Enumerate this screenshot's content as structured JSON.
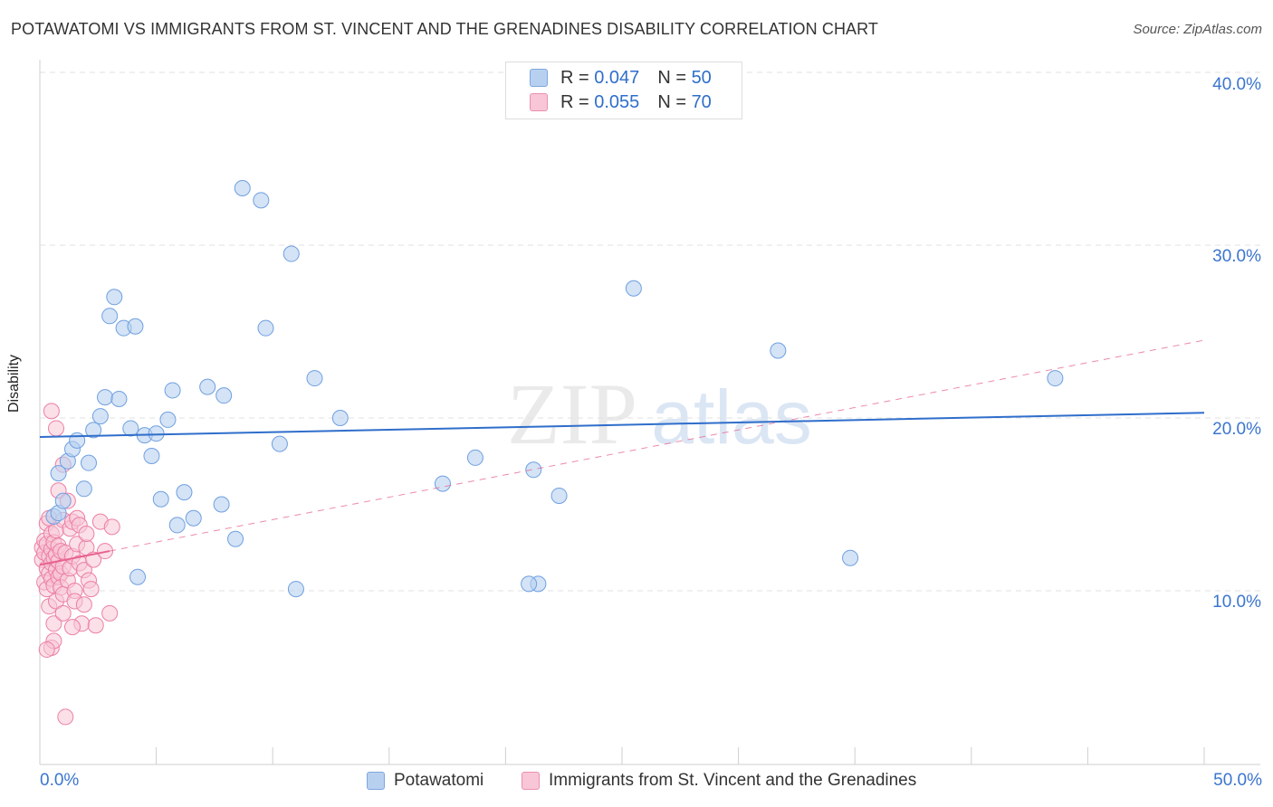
{
  "title": "POTAWATOMI VS IMMIGRANTS FROM ST. VINCENT AND THE GRENADINES DISABILITY CORRELATION CHART",
  "source": "Source: ZipAtlas.com",
  "watermark": {
    "zip": "ZIP",
    "atlas": "atlas"
  },
  "legend_box": {
    "series1": {
      "r_label": "R = ",
      "r_value": "0.047",
      "n_label": "N = ",
      "n_value": "50"
    },
    "series2": {
      "r_label": "R = ",
      "r_value": "0.055",
      "n_label": "N = ",
      "n_value": "70"
    }
  },
  "colors": {
    "blue": "#6fa0e0",
    "blue_fill": "#b8d0f0",
    "pink": "#ec7fa4",
    "pink_fill": "#f8c6d6",
    "blue_line": "#2f6ecb",
    "pink_line": "#e8628f",
    "tick_text": "#3a75cf"
  },
  "chart_data": {
    "type": "scatter",
    "title": "POTAWATOMI VS IMMIGRANTS FROM ST. VINCENT AND THE GRENADINES DISABILITY CORRELATION CHART",
    "xlabel": "",
    "ylabel": "Disability",
    "xlim": [
      0,
      50
    ],
    "ylim": [
      0,
      40
    ],
    "x_tick_labels": [
      "0.0%",
      "50.0%"
    ],
    "y_tick_labels": [
      "10.0%",
      "20.0%",
      "30.0%",
      "40.0%"
    ],
    "y_ticks": [
      10,
      20,
      30,
      40
    ],
    "grid": true,
    "legend_position": "bottom",
    "series": [
      {
        "name": "Potawatomi",
        "color": "#6fa0e0",
        "trend": {
          "x": [
            0,
            50
          ],
          "y": [
            18.9,
            20.3
          ],
          "style": "solid"
        },
        "points": [
          [
            0.6,
            14.3
          ],
          [
            0.8,
            14.5
          ],
          [
            0.8,
            16.8
          ],
          [
            1.0,
            15.2
          ],
          [
            1.2,
            17.5
          ],
          [
            1.4,
            18.2
          ],
          [
            1.6,
            18.7
          ],
          [
            1.9,
            15.9
          ],
          [
            2.1,
            17.4
          ],
          [
            2.3,
            19.3
          ],
          [
            2.6,
            20.1
          ],
          [
            2.8,
            21.2
          ],
          [
            3.0,
            25.9
          ],
          [
            3.2,
            27.0
          ],
          [
            3.4,
            21.1
          ],
          [
            3.6,
            25.2
          ],
          [
            3.9,
            19.4
          ],
          [
            4.1,
            25.3
          ],
          [
            4.2,
            10.8
          ],
          [
            4.5,
            19.0
          ],
          [
            4.8,
            17.8
          ],
          [
            5.0,
            19.1
          ],
          [
            5.2,
            15.3
          ],
          [
            5.5,
            19.9
          ],
          [
            5.7,
            21.6
          ],
          [
            5.9,
            13.8
          ],
          [
            6.2,
            15.7
          ],
          [
            6.6,
            14.2
          ],
          [
            7.2,
            21.8
          ],
          [
            7.8,
            15.0
          ],
          [
            7.9,
            21.3
          ],
          [
            8.4,
            13.0
          ],
          [
            8.7,
            33.3
          ],
          [
            9.5,
            32.6
          ],
          [
            9.7,
            25.2
          ],
          [
            10.3,
            18.5
          ],
          [
            10.8,
            29.5
          ],
          [
            11.0,
            10.1
          ],
          [
            11.8,
            22.3
          ],
          [
            12.9,
            20.0
          ],
          [
            17.3,
            16.2
          ],
          [
            18.7,
            17.7
          ],
          [
            21.2,
            17.0
          ],
          [
            21.4,
            10.4
          ],
          [
            22.3,
            15.5
          ],
          [
            25.5,
            27.5
          ],
          [
            31.7,
            23.9
          ],
          [
            34.8,
            11.9
          ],
          [
            43.6,
            22.3
          ],
          [
            21.0,
            10.4
          ]
        ]
      },
      {
        "name": "Immigrants from St. Vincent and the Grenadines",
        "color": "#ec7fa4",
        "trend": {
          "x": [
            0,
            3.0
          ],
          "y": [
            11.5,
            12.3
          ],
          "style": "solid",
          "extension": {
            "x": [
              3.0,
              50
            ],
            "y": [
              12.3,
              24.5
            ],
            "style": "dashed"
          }
        },
        "points": [
          [
            0.1,
            12.5
          ],
          [
            0.1,
            11.8
          ],
          [
            0.2,
            12.9
          ],
          [
            0.2,
            12.2
          ],
          [
            0.2,
            10.5
          ],
          [
            0.3,
            11.3
          ],
          [
            0.3,
            12.7
          ],
          [
            0.3,
            13.9
          ],
          [
            0.3,
            10.1
          ],
          [
            0.4,
            11.0
          ],
          [
            0.4,
            12.0
          ],
          [
            0.4,
            14.2
          ],
          [
            0.4,
            9.1
          ],
          [
            0.5,
            11.6
          ],
          [
            0.5,
            12.4
          ],
          [
            0.5,
            10.7
          ],
          [
            0.5,
            13.3
          ],
          [
            0.5,
            6.7
          ],
          [
            0.5,
            20.4
          ],
          [
            0.6,
            11.9
          ],
          [
            0.6,
            10.3
          ],
          [
            0.6,
            12.8
          ],
          [
            0.6,
            7.1
          ],
          [
            0.6,
            8.1
          ],
          [
            0.7,
            11.2
          ],
          [
            0.7,
            12.1
          ],
          [
            0.7,
            9.4
          ],
          [
            0.7,
            13.5
          ],
          [
            0.7,
            19.4
          ],
          [
            0.8,
            10.8
          ],
          [
            0.8,
            11.7
          ],
          [
            0.8,
            12.6
          ],
          [
            0.8,
            15.8
          ],
          [
            0.9,
            11.0
          ],
          [
            0.9,
            12.3
          ],
          [
            0.9,
            10.2
          ],
          [
            1.0,
            11.4
          ],
          [
            1.0,
            9.8
          ],
          [
            1.0,
            14.1
          ],
          [
            1.0,
            17.3
          ],
          [
            1.0,
            8.7
          ],
          [
            1.1,
            2.7
          ],
          [
            1.1,
            12.2
          ],
          [
            1.2,
            10.6
          ],
          [
            1.2,
            15.2
          ],
          [
            1.3,
            11.3
          ],
          [
            1.3,
            13.6
          ],
          [
            1.4,
            12.0
          ],
          [
            1.4,
            14.0
          ],
          [
            1.5,
            10.0
          ],
          [
            1.5,
            9.4
          ],
          [
            1.6,
            12.7
          ],
          [
            1.6,
            14.2
          ],
          [
            1.7,
            11.6
          ],
          [
            1.7,
            13.8
          ],
          [
            1.8,
            8.1
          ],
          [
            1.9,
            9.2
          ],
          [
            1.9,
            11.2
          ],
          [
            2.0,
            12.5
          ],
          [
            2.0,
            13.3
          ],
          [
            2.1,
            10.6
          ],
          [
            2.2,
            10.1
          ],
          [
            2.3,
            11.8
          ],
          [
            2.4,
            8.0
          ],
          [
            2.6,
            14.0
          ],
          [
            2.8,
            12.3
          ],
          [
            3.0,
            8.7
          ],
          [
            3.1,
            13.7
          ],
          [
            1.4,
            7.9
          ],
          [
            0.3,
            6.6
          ]
        ]
      }
    ]
  },
  "bottom_legend": {
    "series1": "Potawatomi",
    "series2": "Immigrants from St. Vincent and the Grenadines"
  }
}
